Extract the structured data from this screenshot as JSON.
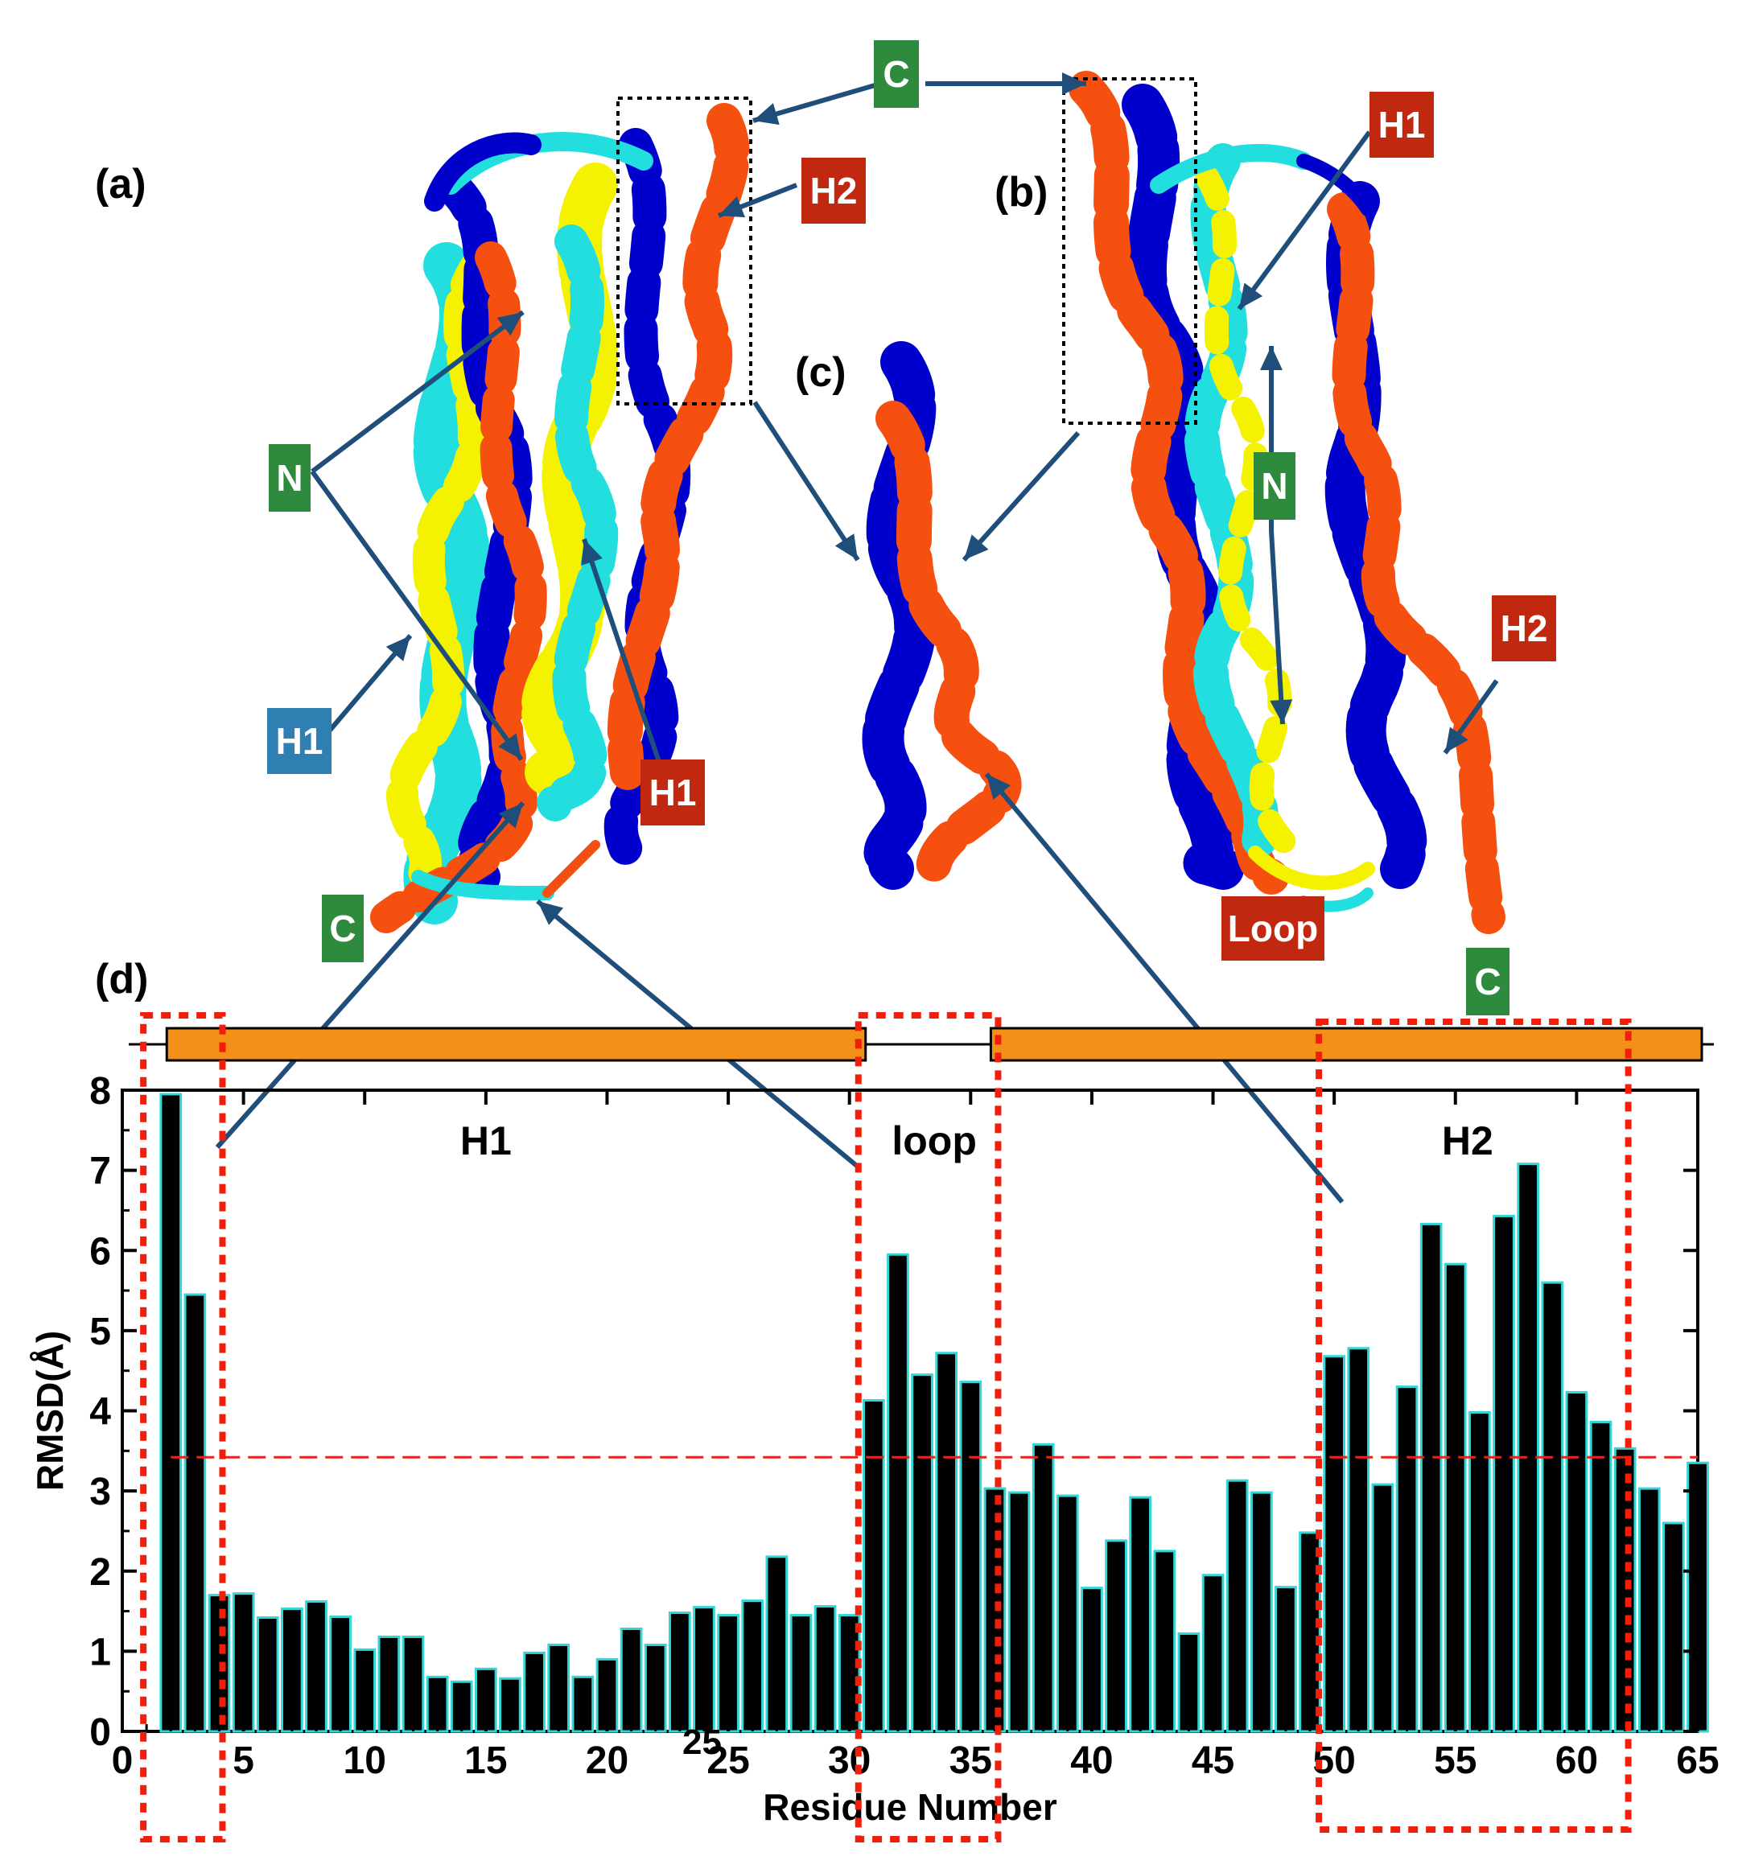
{
  "panels": {
    "a": "(a)",
    "b": "(b)",
    "c": "(c)",
    "d": "(d)"
  },
  "callouts": [
    {
      "id": "c-top",
      "text": "C",
      "color": "#2e8b3e"
    },
    {
      "id": "h2-a",
      "text": "H2",
      "color": "#c0280f"
    },
    {
      "id": "h1-b",
      "text": "H1",
      "color": "#c0280f"
    },
    {
      "id": "n-a",
      "text": "N",
      "color": "#2e8b3e"
    },
    {
      "id": "n-b",
      "text": "N",
      "color": "#2e8b3e"
    },
    {
      "id": "h1-a-blue",
      "text": "H1",
      "color": "#2f7fb3"
    },
    {
      "id": "h1-a-red",
      "text": "H1",
      "color": "#c0280f"
    },
    {
      "id": "h2-b",
      "text": "H2",
      "color": "#c0280f"
    },
    {
      "id": "c-a",
      "text": "C",
      "color": "#2e8b3e"
    },
    {
      "id": "loop-b",
      "text": "Loop",
      "color": "#c0280f"
    },
    {
      "id": "c-b",
      "text": "C",
      "color": "#2e8b3e"
    }
  ],
  "structure": {
    "segments": [
      {
        "label": "H1",
        "start": 2,
        "end": 30.5,
        "kind": "helix"
      },
      {
        "label": "loop",
        "start": 30.5,
        "end": 36,
        "kind": "coil"
      },
      {
        "label": "H2",
        "start": 36,
        "end": 65,
        "kind": "helix"
      }
    ],
    "helix_color": "#f39019"
  },
  "stray_label": "25",
  "colors": {
    "bar_fill": "#000000",
    "bar_edge": "#33d6d6",
    "threshold": "#e8241a",
    "highlight_box": "#f21e0c",
    "arrow": "#1f4e7a",
    "helix_blue": "#0000cc",
    "helix_orange": "#f5500f",
    "helix_cyan": "#22dede",
    "helix_yellow": "#f5f200"
  },
  "chart_data": {
    "type": "bar",
    "xlabel": "Residue Number",
    "ylabel": "RMSD(Å)",
    "xlim": [
      0,
      65
    ],
    "ylim": [
      0,
      8
    ],
    "xticks": [
      0,
      5,
      10,
      15,
      20,
      25,
      30,
      35,
      40,
      45,
      50,
      55,
      60,
      65
    ],
    "yticks": [
      0,
      1,
      2,
      3,
      4,
      5,
      6,
      7,
      8
    ],
    "threshold": 3.42,
    "region_labels": [
      "H1",
      "loop",
      "H2"
    ],
    "highlight_ranges": [
      [
        1,
        4
      ],
      [
        30.5,
        36
      ],
      [
        49.5,
        62
      ]
    ],
    "x": [
      2,
      3,
      4,
      5,
      6,
      7,
      8,
      9,
      10,
      11,
      12,
      13,
      14,
      15,
      16,
      17,
      18,
      19,
      20,
      21,
      22,
      23,
      24,
      25,
      26,
      27,
      28,
      29,
      30,
      31,
      32,
      33,
      34,
      35,
      36,
      37,
      38,
      39,
      40,
      41,
      42,
      43,
      44,
      45,
      46,
      47,
      48,
      49,
      50,
      51,
      52,
      53,
      54,
      55,
      56,
      57,
      58,
      59,
      60,
      61,
      62,
      63,
      64,
      65
    ],
    "values": [
      7.95,
      5.45,
      1.7,
      1.72,
      1.42,
      1.53,
      1.62,
      1.43,
      1.02,
      1.18,
      1.18,
      0.68,
      0.62,
      0.78,
      0.66,
      0.98,
      1.08,
      0.68,
      0.9,
      1.28,
      1.08,
      1.48,
      1.55,
      1.45,
      1.63,
      2.18,
      1.45,
      1.56,
      1.45,
      4.13,
      5.95,
      4.45,
      4.72,
      4.36,
      3.03,
      2.98,
      3.58,
      2.94,
      1.79,
      2.38,
      2.92,
      2.25,
      1.22,
      1.95,
      3.13,
      2.98,
      1.8,
      2.48,
      4.68,
      4.78,
      3.08,
      4.3,
      6.33,
      5.83,
      3.98,
      6.43,
      7.08,
      5.6,
      4.23,
      3.86,
      3.53,
      3.03,
      2.6,
      3.35
    ]
  }
}
